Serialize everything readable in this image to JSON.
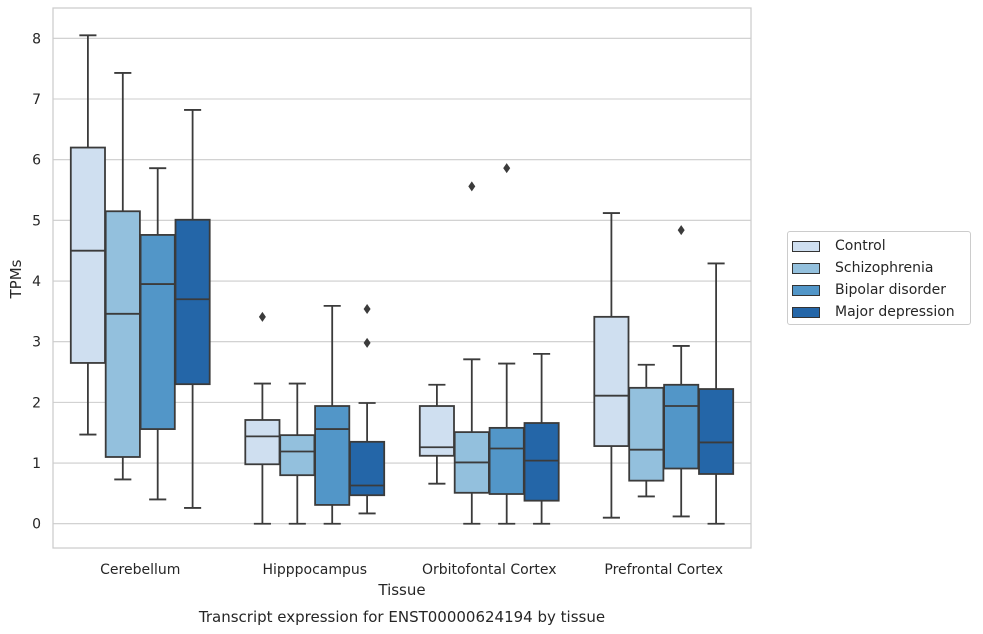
{
  "chart_data": {
    "type": "box",
    "title": "Transcript expression for ENST00000624194 by tissue",
    "xlabel": "Tissue",
    "ylabel": "TPMs",
    "ylim": [
      -0.4,
      8.5
    ],
    "yticks": [
      0,
      1,
      2,
      3,
      4,
      5,
      6,
      7,
      8
    ],
    "grid": "horizontal",
    "legend_position": "right",
    "categories": [
      "Cerebellum",
      "Hipppocampus",
      "Orbitofontal Cortex",
      "Prefrontal Cortex"
    ],
    "series": [
      {
        "name": "Control",
        "color": "#cfdff0",
        "boxes": [
          {
            "whisker_low": 1.47,
            "q1": 2.65,
            "median": 4.5,
            "q3": 6.2,
            "whisker_high": 8.05,
            "outliers": []
          },
          {
            "whisker_low": 0.0,
            "q1": 0.98,
            "median": 1.44,
            "q3": 1.71,
            "whisker_high": 2.31,
            "outliers": [
              3.41
            ]
          },
          {
            "whisker_low": 0.66,
            "q1": 1.12,
            "median": 1.26,
            "q3": 1.94,
            "whisker_high": 2.29,
            "outliers": []
          },
          {
            "whisker_low": 0.1,
            "q1": 1.28,
            "median": 2.11,
            "q3": 3.41,
            "whisker_high": 5.12,
            "outliers": []
          }
        ]
      },
      {
        "name": "Schizophrenia",
        "color": "#93c0dd",
        "boxes": [
          {
            "whisker_low": 0.73,
            "q1": 1.1,
            "median": 3.46,
            "q3": 5.15,
            "whisker_high": 7.43,
            "outliers": []
          },
          {
            "whisker_low": 0.0,
            "q1": 0.8,
            "median": 1.19,
            "q3": 1.46,
            "whisker_high": 2.31,
            "outliers": []
          },
          {
            "whisker_low": 0.0,
            "q1": 0.51,
            "median": 1.01,
            "q3": 1.51,
            "whisker_high": 2.71,
            "outliers": [
              5.56
            ]
          },
          {
            "whisker_low": 0.45,
            "q1": 0.71,
            "median": 1.22,
            "q3": 2.24,
            "whisker_high": 2.62,
            "outliers": []
          }
        ]
      },
      {
        "name": "Bipolar disorder",
        "color": "#5296c8",
        "boxes": [
          {
            "whisker_low": 0.4,
            "q1": 1.56,
            "median": 3.95,
            "q3": 4.76,
            "whisker_high": 5.86,
            "outliers": []
          },
          {
            "whisker_low": 0.0,
            "q1": 0.31,
            "median": 1.56,
            "q3": 1.94,
            "whisker_high": 3.59,
            "outliers": []
          },
          {
            "whisker_low": 0.0,
            "q1": 0.49,
            "median": 1.24,
            "q3": 1.58,
            "whisker_high": 2.64,
            "outliers": [
              5.86
            ]
          },
          {
            "whisker_low": 0.12,
            "q1": 0.91,
            "median": 1.94,
            "q3": 2.29,
            "whisker_high": 2.93,
            "outliers": [
              4.84
            ]
          }
        ]
      },
      {
        "name": "Major depression",
        "color": "#2466a8",
        "boxes": [
          {
            "whisker_low": 0.26,
            "q1": 2.3,
            "median": 3.7,
            "q3": 5.01,
            "whisker_high": 6.82,
            "outliers": []
          },
          {
            "whisker_low": 0.17,
            "q1": 0.47,
            "median": 0.63,
            "q3": 1.35,
            "whisker_high": 1.99,
            "outliers": [
              2.98,
              3.54
            ]
          },
          {
            "whisker_low": 0.0,
            "q1": 0.38,
            "median": 1.04,
            "q3": 1.66,
            "whisker_high": 2.8,
            "outliers": []
          },
          {
            "whisker_low": 0.0,
            "q1": 0.82,
            "median": 1.34,
            "q3": 2.22,
            "whisker_high": 4.29,
            "outliers": []
          }
        ]
      }
    ]
  }
}
